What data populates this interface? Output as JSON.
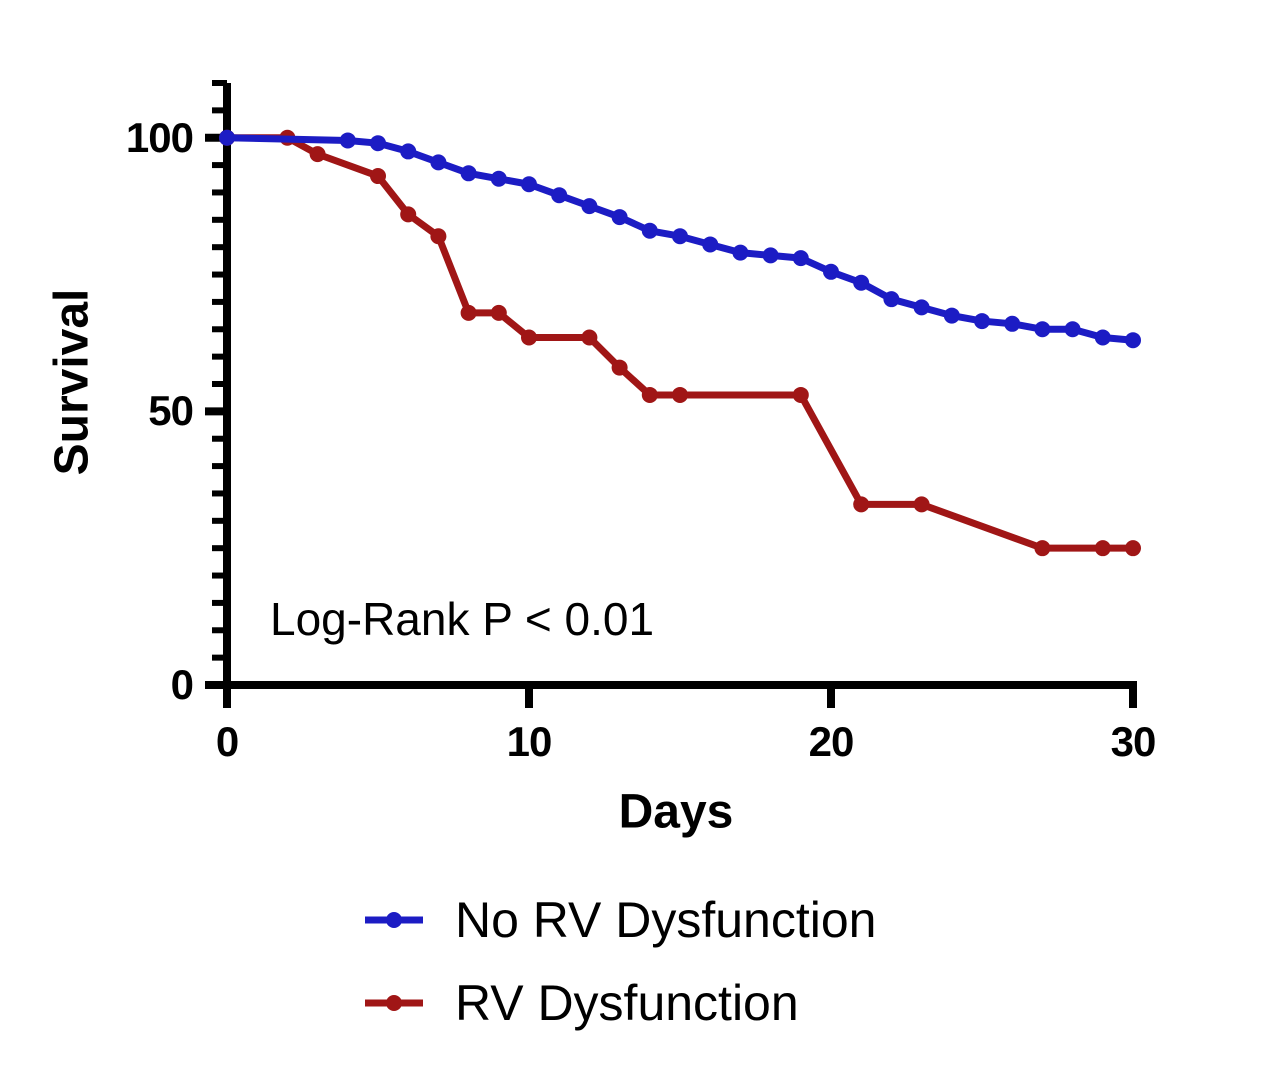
{
  "chart_data": {
    "type": "line",
    "chart_kind": "kaplan-meier-survival-curve",
    "title": "",
    "xlabel": "Days",
    "ylabel": "Survival",
    "annotation": "Log-Rank P < 0.01",
    "x_range": [
      0,
      30
    ],
    "y_range": [
      0,
      110
    ],
    "x_ticks": [
      0,
      10,
      20,
      30
    ],
    "y_major_ticks": [
      0,
      50,
      100
    ],
    "y_minor_tick_step": 5,
    "grid": false,
    "legend_position": "below-chart",
    "axis_color": "#000000",
    "background_color": "#ffffff",
    "series": [
      {
        "name": "No RV Dysfunction",
        "color": "#1c1cc4",
        "marker": "circle",
        "points": [
          [
            0,
            100
          ],
          [
            4,
            99.5
          ],
          [
            5,
            99
          ],
          [
            6,
            97.5
          ],
          [
            7,
            95.5
          ],
          [
            8,
            93.5
          ],
          [
            9,
            92.5
          ],
          [
            10,
            91.5
          ],
          [
            11,
            89.5
          ],
          [
            12,
            87.5
          ],
          [
            13,
            85.5
          ],
          [
            14,
            83
          ],
          [
            15,
            82
          ],
          [
            16,
            80.5
          ],
          [
            17,
            79
          ],
          [
            18,
            78.5
          ],
          [
            19,
            78
          ],
          [
            20,
            75.5
          ],
          [
            21,
            73.5
          ],
          [
            22,
            70.5
          ],
          [
            23,
            69
          ],
          [
            24,
            67.5
          ],
          [
            25,
            66.5
          ],
          [
            26,
            66
          ],
          [
            27,
            65
          ],
          [
            28,
            65
          ],
          [
            29,
            63.5
          ],
          [
            30,
            63
          ]
        ]
      },
      {
        "name": "RV Dysfunction",
        "color": "#a01616",
        "marker": "circle",
        "points": [
          [
            0,
            100
          ],
          [
            2,
            100
          ],
          [
            3,
            97
          ],
          [
            5,
            93
          ],
          [
            6,
            86
          ],
          [
            7,
            82
          ],
          [
            8,
            68
          ],
          [
            9,
            68
          ],
          [
            10,
            63.5
          ],
          [
            12,
            63.5
          ],
          [
            13,
            58
          ],
          [
            14,
            53
          ],
          [
            15,
            53
          ],
          [
            19,
            53
          ],
          [
            21,
            33
          ],
          [
            23,
            33
          ],
          [
            27,
            25
          ],
          [
            29,
            25
          ],
          [
            30,
            25
          ]
        ]
      }
    ]
  }
}
